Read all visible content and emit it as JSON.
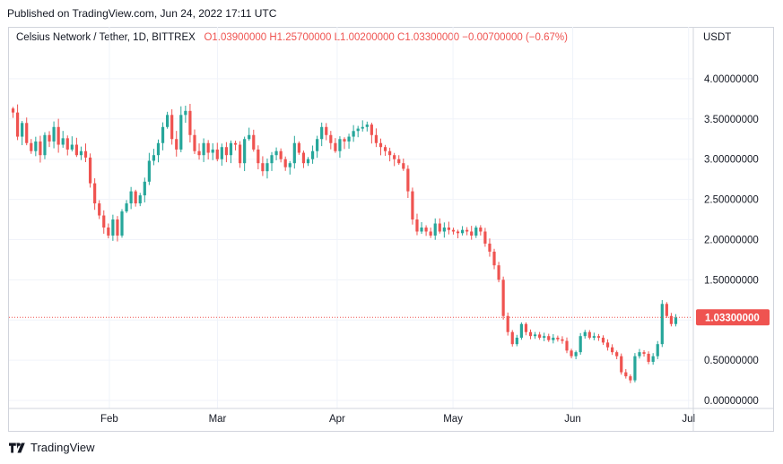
{
  "header": {
    "published": "Published on TradingView.com, Jun 24, 2022 17:11 UTC"
  },
  "legend": {
    "symbol": "Celsius Network / Tether, 1D, BITTREX",
    "open_label": "O",
    "open": "1.03900000",
    "high_label": "H",
    "high": "1.25700000",
    "low_label": "L",
    "low": "1.00200000",
    "close_label": "C",
    "close": "1.03300000",
    "change": "−0.00700000 (−0.67%)"
  },
  "currency": "USDT",
  "footer": {
    "brand": "TradingView"
  },
  "colors": {
    "up": "#26a69a",
    "down": "#ef5350",
    "grid": "#f0f3fa",
    "axis_text": "#131722"
  },
  "chart_data": {
    "type": "candlestick",
    "y_axis_position": "right",
    "ylim": [
      -0.1,
      4.4
    ],
    "yticks": [
      "4.00000000",
      "3.50000000",
      "3.00000000",
      "2.50000000",
      "2.00000000",
      "1.50000000",
      "1.00000000",
      "0.50000000",
      "0.00000000"
    ],
    "ytick_values": [
      4.0,
      3.5,
      3.0,
      2.5,
      2.0,
      1.5,
      1.0,
      0.5,
      0.0
    ],
    "xticks": [
      {
        "label": "Feb",
        "date": "2022-02-01"
      },
      {
        "label": "Mar",
        "date": "2022-03-01"
      },
      {
        "label": "Apr",
        "date": "2022-04-01"
      },
      {
        "label": "May",
        "date": "2022-05-01"
      },
      {
        "label": "Jun",
        "date": "2022-06-01"
      },
      {
        "label": "Jul",
        "date": "2022-07-01"
      }
    ],
    "x_start": "2022-01-06",
    "x_end": "2022-07-02",
    "last_price": {
      "value": 1.033,
      "label": "1.03300000"
    },
    "closes": [
      3.58,
      3.28,
      3.45,
      3.2,
      3.1,
      3.22,
      3.05,
      3.3,
      3.22,
      3.4,
      3.18,
      3.26,
      3.12,
      3.18,
      3.05,
      3.1,
      3.02,
      2.7,
      2.45,
      2.3,
      2.15,
      2.05,
      2.25,
      2.05,
      2.35,
      2.45,
      2.6,
      2.45,
      2.55,
      2.72,
      2.98,
      3.05,
      3.2,
      3.4,
      3.55,
      3.25,
      3.12,
      3.55,
      3.6,
      3.3,
      3.1,
      3.05,
      3.2,
      3.08,
      3.12,
      3.0,
      3.15,
      3.05,
      3.2,
      3.18,
      2.95,
      3.25,
      3.3,
      3.12,
      2.95,
      2.85,
      2.95,
      3.05,
      3.1,
      3.0,
      2.9,
      2.95,
      3.2,
      3.08,
      2.95,
      3.0,
      3.1,
      3.25,
      3.4,
      3.3,
      3.2,
      3.1,
      3.25,
      3.22,
      3.28,
      3.35,
      3.38,
      3.4,
      3.43,
      3.3,
      3.2,
      3.15,
      3.1,
      3.05,
      3.0,
      2.95,
      2.88,
      2.6,
      2.25,
      2.1,
      2.15,
      2.1,
      2.05,
      2.2,
      2.1,
      2.15,
      2.12,
      2.1,
      2.08,
      2.12,
      2.1,
      2.05,
      2.15,
      2.1,
      1.95,
      1.85,
      1.68,
      1.5,
      1.05,
      0.85,
      0.7,
      0.78,
      0.95,
      0.85,
      0.8,
      0.82,
      0.78,
      0.8,
      0.75,
      0.78,
      0.76,
      0.74,
      0.62,
      0.55,
      0.6,
      0.8,
      0.85,
      0.78,
      0.8,
      0.78,
      0.72,
      0.66,
      0.6,
      0.55,
      0.35,
      0.3,
      0.25,
      0.55,
      0.6,
      0.58,
      0.48,
      0.55,
      0.7,
      1.2,
      1.05,
      0.95,
      1.03
    ]
  }
}
